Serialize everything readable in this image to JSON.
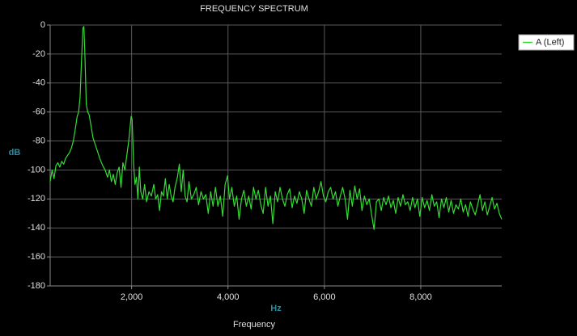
{
  "chart_data": {
    "type": "line",
    "title": "FREQUENCY SPECTRUM",
    "x_label": "Hz",
    "y_label": "dB",
    "footer": "Frequency",
    "xlim": [
      310,
      9680
    ],
    "ylim": [
      -180,
      0
    ],
    "xticks": [
      {
        "value": 2000,
        "label": "2,000"
      },
      {
        "value": 4000,
        "label": "4,000"
      },
      {
        "value": 6000,
        "label": "6,000"
      },
      {
        "value": 8000,
        "label": "8,000"
      }
    ],
    "yticks": [
      0,
      -20,
      -40,
      -60,
      -80,
      -100,
      -120,
      -140,
      -160,
      -180
    ],
    "grid": true,
    "legend": "top-right",
    "x": [
      310,
      350,
      390,
      430,
      470,
      510,
      550,
      590,
      630,
      670,
      710,
      750,
      790,
      830,
      870,
      900,
      930,
      960,
      990,
      1010,
      1030,
      1060,
      1090,
      1120,
      1160,
      1200,
      1250,
      1300,
      1350,
      1400,
      1450,
      1500,
      1540,
      1580,
      1620,
      1660,
      1700,
      1740,
      1780,
      1820,
      1860,
      1900,
      1940,
      1970,
      1990,
      2010,
      2040,
      2070,
      2100,
      2130,
      2160,
      2190,
      2230,
      2270,
      2310,
      2360,
      2410,
      2460,
      2500,
      2540,
      2580,
      2620,
      2660,
      2700,
      2740,
      2780,
      2820,
      2860,
      2900,
      2950,
      2990,
      3030,
      3070,
      3110,
      3150,
      3190,
      3240,
      3290,
      3340,
      3390,
      3440,
      3490,
      3540,
      3590,
      3640,
      3690,
      3740,
      3790,
      3840,
      3890,
      3940,
      3990,
      4030,
      4080,
      4130,
      4180,
      4230,
      4280,
      4330,
      4380,
      4430,
      4480,
      4530,
      4580,
      4630,
      4680,
      4730,
      4780,
      4830,
      4880,
      4930,
      4980,
      5030,
      5080,
      5130,
      5180,
      5230,
      5280,
      5330,
      5380,
      5430,
      5480,
      5530,
      5580,
      5630,
      5680,
      5730,
      5780,
      5830,
      5880,
      5930,
      5980,
      6030,
      6080,
      6130,
      6180,
      6230,
      6280,
      6330,
      6380,
      6430,
      6480,
      6530,
      6580,
      6630,
      6680,
      6730,
      6780,
      6830,
      6880,
      6930,
      6980,
      7030,
      7080,
      7130,
      7180,
      7230,
      7280,
      7330,
      7380,
      7430,
      7480,
      7530,
      7580,
      7630,
      7680,
      7730,
      7780,
      7830,
      7880,
      7930,
      7980,
      8030,
      8080,
      8130,
      8180,
      8230,
      8280,
      8330,
      8380,
      8430,
      8480,
      8530,
      8580,
      8630,
      8680,
      8730,
      8780,
      8830,
      8880,
      8930,
      8980,
      9030,
      9080,
      9130,
      9180,
      9230,
      9280,
      9330,
      9380,
      9430,
      9480,
      9530,
      9580,
      9630,
      9680
    ],
    "series": [
      {
        "name": "A (Left)",
        "color": "#33dd33",
        "values": [
          -108,
          -100,
          -106,
          -97,
          -95,
          -98,
          -94,
          -96,
          -92,
          -90,
          -88,
          -85,
          -80,
          -72,
          -63,
          -60,
          -50,
          -25,
          -2,
          -1,
          -20,
          -55,
          -60,
          -62,
          -70,
          -78,
          -83,
          -88,
          -93,
          -97,
          -100,
          -105,
          -100,
          -108,
          -103,
          -110,
          -102,
          -98,
          -112,
          -95,
          -100,
          -90,
          -80,
          -70,
          -63,
          -65,
          -95,
          -110,
          -105,
          -120,
          -98,
          -115,
          -120,
          -110,
          -122,
          -115,
          -118,
          -110,
          -120,
          -117,
          -128,
          -115,
          -118,
          -106,
          -120,
          -110,
          -118,
          -122,
          -112,
          -105,
          -96,
          -115,
          -100,
          -118,
          -122,
          -108,
          -120,
          -117,
          -112,
          -124,
          -115,
          -120,
          -117,
          -130,
          -115,
          -125,
          -112,
          -125,
          -118,
          -132,
          -110,
          -104,
          -120,
          -112,
          -125,
          -118,
          -134,
          -120,
          -114,
          -125,
          -118,
          -127,
          -112,
          -120,
          -114,
          -124,
          -130,
          -112,
          -125,
          -118,
          -137,
          -115,
          -122,
          -112,
          -120,
          -125,
          -117,
          -113,
          -126,
          -118,
          -123,
          -115,
          -120,
          -130,
          -114,
          -120,
          -125,
          -112,
          -120,
          -115,
          -108,
          -118,
          -122,
          -115,
          -112,
          -120,
          -115,
          -125,
          -118,
          -112,
          -120,
          -134,
          -114,
          -125,
          -111,
          -120,
          -113,
          -128,
          -118,
          -124,
          -120,
          -131,
          -141,
          -122,
          -120,
          -128,
          -119,
          -124,
          -118,
          -126,
          -121,
          -130,
          -119,
          -125,
          -117,
          -124,
          -122,
          -128,
          -119,
          -126,
          -120,
          -132,
          -119,
          -126,
          -121,
          -128,
          -117,
          -125,
          -122,
          -133,
          -120,
          -126,
          -119,
          -129,
          -121,
          -130,
          -124,
          -127,
          -120,
          -129,
          -124,
          -132,
          -122,
          -127,
          -131,
          -124,
          -117,
          -128,
          -122,
          -131,
          -125,
          -119,
          -127,
          -123,
          -130,
          -134
        ]
      }
    ]
  }
}
